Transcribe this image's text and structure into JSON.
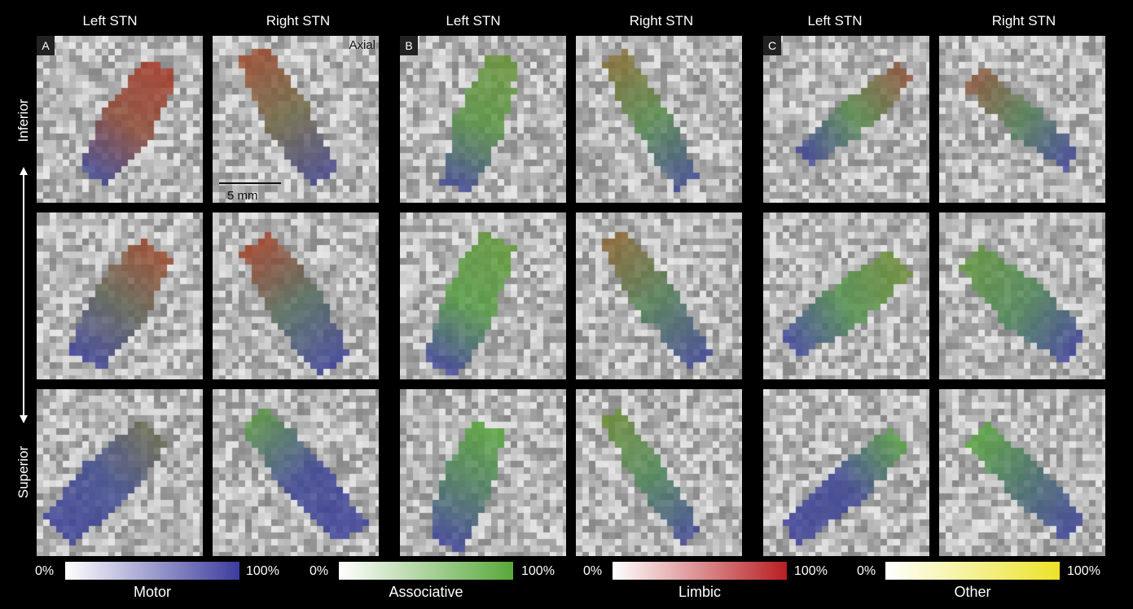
{
  "column_headers": [
    "Left STN",
    "Right STN",
    "Left STN",
    "Right STN",
    "Left STN",
    "Right STN"
  ],
  "panel_letters": [
    "A",
    "B",
    "C"
  ],
  "orientation_label": "Axial",
  "scale_bar_label": "5 mm",
  "vertical_axis": {
    "top": "Inferior",
    "bottom": "Superior"
  },
  "colorbars": [
    {
      "name": "Motor",
      "min_label": "0%",
      "max_label": "100%",
      "color": "#3c3c9e"
    },
    {
      "name": "Associative",
      "min_label": "0%",
      "max_label": "100%",
      "color": "#58a83a"
    },
    {
      "name": "Limbic",
      "min_label": "0%",
      "max_label": "100%",
      "color": "#b81e22"
    },
    {
      "name": "Other",
      "min_label": "0%",
      "max_label": "100%",
      "color": "#ece228"
    }
  ],
  "colors": {
    "background": "#000000",
    "motor": "#3c3c9e",
    "associative": "#58a83a",
    "limbic": "#b81e22",
    "other": "#ece228"
  }
}
